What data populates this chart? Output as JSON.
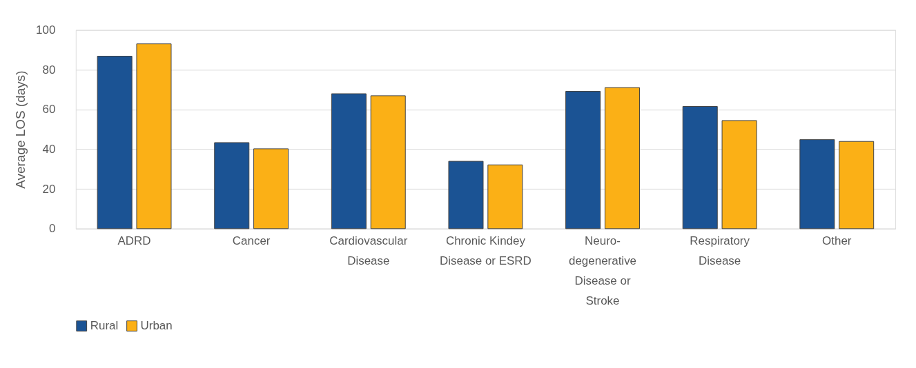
{
  "chart_data": {
    "type": "bar",
    "ylabel": "Average LOS (days)",
    "categories": [
      "ADRD",
      "Cancer",
      "Cardiovascular Disease",
      "Chronic Kindey Disease or ESRD",
      "Neuro-degenerative Disease or Stroke",
      "Respiratory Disease",
      "Other"
    ],
    "series": [
      {
        "name": "Rural",
        "color": "#1b5394",
        "values": [
          86.8,
          43.3,
          67.9,
          33.9,
          69.1,
          61.5,
          44.8
        ]
      },
      {
        "name": "Urban",
        "color": "#fbb016",
        "values": [
          93.0,
          40.2,
          66.9,
          32.1,
          71.0,
          54.4,
          43.9
        ]
      }
    ],
    "ylim": [
      0,
      100
    ],
    "yticks": [
      0,
      20,
      40,
      60,
      80,
      100
    ],
    "grid": "y",
    "legend": "bottom"
  }
}
